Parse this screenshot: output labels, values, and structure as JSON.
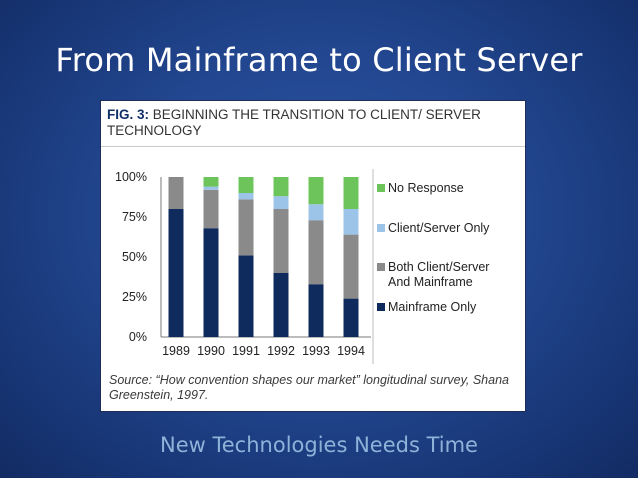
{
  "slide": {
    "title": "From Mainframe to Client Server",
    "subtitle": "New Technologies Needs Time"
  },
  "figure": {
    "label": "FIG. 3:",
    "title_text": "BEGINNING THE TRANSITION TO CLIENT/ SERVER TECHNOLOGY",
    "source": "Source: “How convention shapes our market” longitudinal survey, Shana Greenstein, 1997."
  },
  "colors": {
    "background": "#22468f",
    "title_text": "#ffffff",
    "subtitle_text": "#8fb2d9",
    "mainframe_only": "#0f2a5c",
    "both": "#8a8a8a",
    "client_server_only": "#9cc4e8",
    "no_response": "#6cc45a"
  },
  "chart_data": {
    "type": "bar",
    "stacked": true,
    "categories": [
      "1989",
      "1990",
      "1991",
      "1992",
      "1993",
      "1994"
    ],
    "series": [
      {
        "name": "Mainframe Only",
        "color": "#0f2a5c",
        "values": [
          80,
          68,
          51,
          40,
          33,
          24
        ]
      },
      {
        "name": "Both Client/Server And Mainframe",
        "color": "#8a8a8a",
        "values": [
          20,
          24,
          35,
          40,
          40,
          40
        ]
      },
      {
        "name": "Client/Server Only",
        "color": "#9cc4e8",
        "values": [
          0,
          2,
          4,
          8,
          10,
          16
        ]
      },
      {
        "name": "No Response",
        "color": "#6cc45a",
        "values": [
          0,
          6,
          10,
          12,
          17,
          20
        ]
      }
    ],
    "yticks": [
      "0%",
      "25%",
      "50%",
      "75%",
      "100%"
    ],
    "ylim": [
      0,
      100
    ],
    "legend": [
      {
        "lines": [
          "No Response"
        ],
        "color": "#6cc45a"
      },
      {
        "lines": [
          "Client/Server Only"
        ],
        "color": "#9cc4e8"
      },
      {
        "lines": [
          "Both Client/Server",
          "And Mainframe"
        ],
        "color": "#8a8a8a"
      },
      {
        "lines": [
          "Mainframe Only"
        ],
        "color": "#0f2a5c"
      }
    ],
    "legend_position": "right",
    "grid": false
  }
}
